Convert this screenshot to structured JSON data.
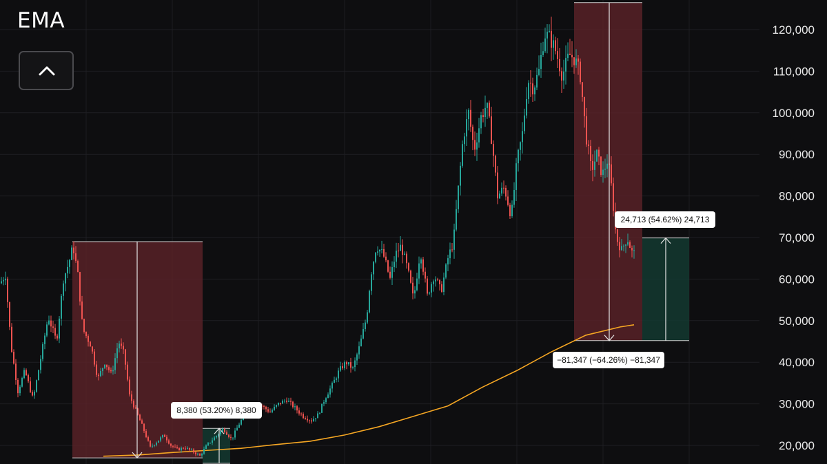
{
  "header": {
    "title": "EMA"
  },
  "colors": {
    "background": "#0e0e10",
    "up": "#26a69a",
    "down": "#ef5350",
    "ema_line": "#f5a623",
    "drawdown_zone": "#5a2228",
    "rally_zone": "#143a32"
  },
  "chart_data": {
    "type": "candlestick",
    "y_axis": {
      "position": "right",
      "range": [
        17000,
        127000
      ],
      "ticks": [
        20000,
        30000,
        40000,
        50000,
        60000,
        70000,
        80000,
        90000,
        100000,
        110000,
        120000
      ],
      "tick_labels": [
        "20,000",
        "30,000",
        "40,000",
        "50,000",
        "60,000",
        "70,000",
        "80,000",
        "90,000",
        "100,000",
        "110,000",
        "120,000"
      ]
    },
    "grid": true,
    "price_path": [
      [
        0,
        59000
      ],
      [
        8,
        61000
      ],
      [
        16,
        44000
      ],
      [
        26,
        33000
      ],
      [
        36,
        38000
      ],
      [
        48,
        31000
      ],
      [
        58,
        40000
      ],
      [
        70,
        51000
      ],
      [
        82,
        45000
      ],
      [
        92,
        60000
      ],
      [
        100,
        64000
      ],
      [
        106,
        68000
      ],
      [
        113,
        61000
      ],
      [
        120,
        48000
      ],
      [
        132,
        44000
      ],
      [
        142,
        36000
      ],
      [
        152,
        40000
      ],
      [
        162,
        37000
      ],
      [
        172,
        45000
      ],
      [
        180,
        42000
      ],
      [
        188,
        32000
      ],
      [
        198,
        28000
      ],
      [
        208,
        24000
      ],
      [
        218,
        19500
      ],
      [
        228,
        21000
      ],
      [
        238,
        22500
      ],
      [
        248,
        20000
      ],
      [
        258,
        19000
      ],
      [
        268,
        19500
      ],
      [
        278,
        18700
      ],
      [
        290,
        17500
      ],
      [
        300,
        20000
      ],
      [
        312,
        22000
      ],
      [
        324,
        24000
      ],
      [
        336,
        21500
      ],
      [
        348,
        25500
      ],
      [
        358,
        28000
      ],
      [
        368,
        30000
      ],
      [
        380,
        29500
      ],
      [
        392,
        28000
      ],
      [
        404,
        30000
      ],
      [
        416,
        31000
      ],
      [
        428,
        29000
      ],
      [
        440,
        27000
      ],
      [
        452,
        26000
      ],
      [
        462,
        27500
      ],
      [
        472,
        31500
      ],
      [
        482,
        34500
      ],
      [
        492,
        38000
      ],
      [
        502,
        40000
      ],
      [
        512,
        38500
      ],
      [
        522,
        44000
      ],
      [
        532,
        51000
      ],
      [
        538,
        61000
      ],
      [
        546,
        68000
      ],
      [
        556,
        66000
      ],
      [
        566,
        60000
      ],
      [
        574,
        66000
      ],
      [
        582,
        68000
      ],
      [
        592,
        62000
      ],
      [
        600,
        55000
      ],
      [
        610,
        67000
      ],
      [
        620,
        56000
      ],
      [
        630,
        61000
      ],
      [
        640,
        57000
      ],
      [
        650,
        65000
      ],
      [
        658,
        69000
      ],
      [
        664,
        80000
      ],
      [
        672,
        94000
      ],
      [
        680,
        100000
      ],
      [
        688,
        91000
      ],
      [
        698,
        99000
      ],
      [
        706,
        102000
      ],
      [
        714,
        93000
      ],
      [
        722,
        80000
      ],
      [
        732,
        82000
      ],
      [
        742,
        75000
      ],
      [
        750,
        88000
      ],
      [
        758,
        95000
      ],
      [
        766,
        108000
      ],
      [
        774,
        106000
      ],
      [
        782,
        110000
      ],
      [
        790,
        119000
      ],
      [
        798,
        118000
      ],
      [
        806,
        115000
      ],
      [
        816,
        109000
      ],
      [
        826,
        114000
      ],
      [
        834,
        113000
      ],
      [
        842,
        109000
      ],
      [
        850,
        95000
      ],
      [
        858,
        86000
      ],
      [
        866,
        90000
      ],
      [
        874,
        85000
      ],
      [
        882,
        89000
      ],
      [
        888,
        81000
      ],
      [
        894,
        70000
      ],
      [
        902,
        67000
      ],
      [
        910,
        70000
      ],
      [
        918,
        66000
      ],
      [
        922,
        66500
      ]
    ],
    "ema_line": [
      [
        150,
        17400
      ],
      [
        200,
        17700
      ],
      [
        250,
        18300
      ],
      [
        300,
        18800
      ],
      [
        350,
        19300
      ],
      [
        400,
        20200
      ],
      [
        450,
        21000
      ],
      [
        500,
        22500
      ],
      [
        550,
        24500
      ],
      [
        600,
        27000
      ],
      [
        650,
        29500
      ],
      [
        700,
        34000
      ],
      [
        750,
        38000
      ],
      [
        800,
        42500
      ],
      [
        850,
        46500
      ],
      [
        900,
        48500
      ],
      [
        920,
        49000
      ]
    ],
    "measurements": [
      {
        "kind": "drawdown",
        "from_price": 69000,
        "to_price": 17000,
        "label": "",
        "label_visible": false
      },
      {
        "kind": "rally",
        "from_price": 15700,
        "to_price": 24100,
        "label": "8,380 (53.20%) 8,380"
      },
      {
        "kind": "drawdown",
        "from_price": 126500,
        "to_price": 45200,
        "label": "−81,347 (−64.26%) −81,347"
      },
      {
        "kind": "rally",
        "from_price": 45200,
        "to_price": 69900,
        "label": "24,713 (54.62%) 24,713"
      }
    ]
  }
}
